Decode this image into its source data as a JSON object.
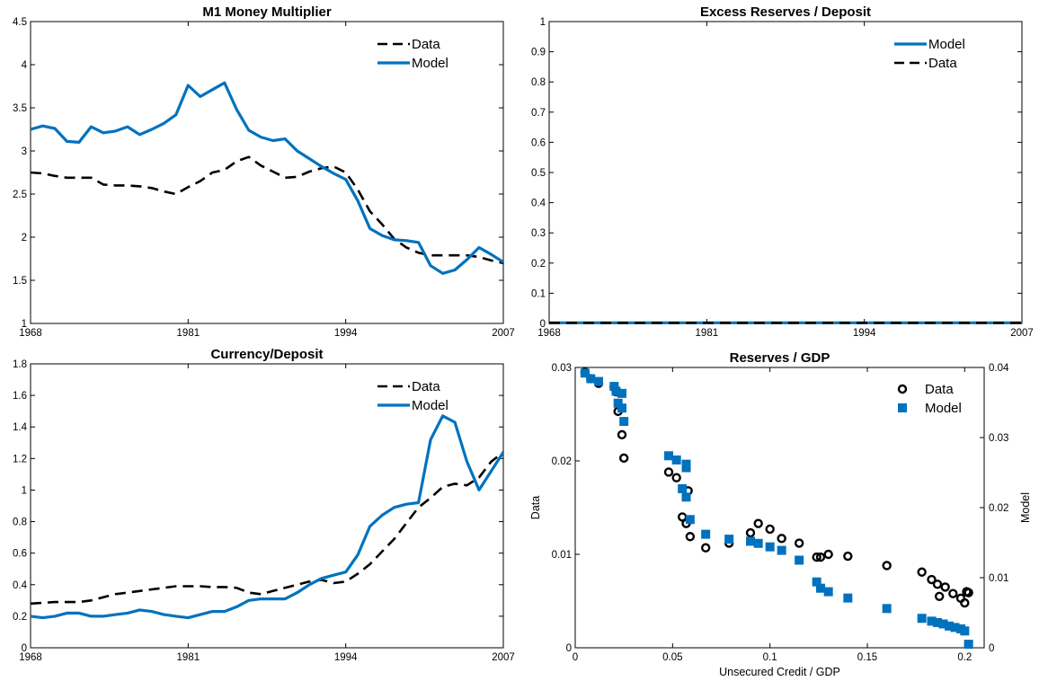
{
  "colors": {
    "data": "#000000",
    "model": "#0072BD",
    "axis": "#000000",
    "background": "#ffffff"
  },
  "chart_data": [
    {
      "id": "m1",
      "type": "line",
      "title": "M1 Money Multiplier",
      "xlabel": "",
      "ylabel": "",
      "xlim": [
        1968,
        2007
      ],
      "ylim": [
        1,
        4.5
      ],
      "xticks": [
        1968,
        1981,
        1994,
        2007
      ],
      "yticks": [
        1,
        1.5,
        2,
        2.5,
        3,
        3.5,
        4,
        4.5
      ],
      "ytick_labels": [
        "1",
        "1.5",
        "2",
        "2.5",
        "3",
        "3.5",
        "4",
        "4.5"
      ],
      "legend": {
        "placement": "top-right",
        "order": [
          "Data",
          "Model"
        ]
      },
      "x": [
        1968,
        1969,
        1970,
        1971,
        1972,
        1973,
        1974,
        1975,
        1976,
        1977,
        1978,
        1979,
        1980,
        1981,
        1982,
        1983,
        1984,
        1985,
        1986,
        1987,
        1988,
        1989,
        1990,
        1991,
        1992,
        1993,
        1994,
        1995,
        1996,
        1997,
        1998,
        1999,
        2000,
        2001,
        2002,
        2003,
        2004,
        2005,
        2006,
        2007
      ],
      "series": [
        {
          "name": "Data",
          "style": "dashed",
          "values": [
            2.75,
            2.74,
            2.71,
            2.69,
            2.69,
            2.69,
            2.61,
            2.6,
            2.6,
            2.59,
            2.57,
            2.53,
            2.5,
            2.58,
            2.65,
            2.75,
            2.78,
            2.88,
            2.93,
            2.83,
            2.76,
            2.69,
            2.7,
            2.76,
            2.8,
            2.82,
            2.75,
            2.55,
            2.3,
            2.15,
            1.98,
            1.88,
            1.82,
            1.79,
            1.79,
            1.79,
            1.79,
            1.77,
            1.73,
            1.7
          ]
        },
        {
          "name": "Model",
          "style": "solid",
          "values": [
            3.25,
            3.29,
            3.26,
            3.11,
            3.1,
            3.28,
            3.21,
            3.23,
            3.28,
            3.19,
            3.25,
            3.32,
            3.42,
            3.76,
            3.63,
            3.71,
            3.79,
            3.48,
            3.24,
            3.16,
            3.12,
            3.14,
            3.0,
            2.91,
            2.82,
            2.74,
            2.67,
            2.42,
            2.1,
            2.02,
            1.97,
            1.96,
            1.94,
            1.67,
            1.58,
            1.62,
            1.74,
            1.88,
            1.8,
            1.71
          ]
        }
      ]
    },
    {
      "id": "excess",
      "type": "line",
      "title": "Excess Reserves / Deposit",
      "xlabel": "",
      "ylabel": "",
      "xlim": [
        1968,
        2007
      ],
      "ylim": [
        0,
        1
      ],
      "xticks": [
        1968,
        1981,
        1994,
        2007
      ],
      "yticks": [
        0,
        0.1,
        0.2,
        0.3,
        0.4,
        0.5,
        0.6,
        0.7,
        0.8,
        0.9,
        1
      ],
      "ytick_labels": [
        "0",
        "0.1",
        "0.2",
        "0.3",
        "0.4",
        "0.5",
        "0.6",
        "0.7",
        "0.8",
        "0.9",
        "1"
      ],
      "legend": {
        "placement": "top-right",
        "order": [
          "Model",
          "Data"
        ]
      },
      "x": [
        1968,
        2007
      ],
      "series": [
        {
          "name": "Model",
          "style": "solid",
          "values": [
            0.002,
            0.002
          ]
        },
        {
          "name": "Data",
          "style": "dashed",
          "values": [
            0.002,
            0.002
          ]
        }
      ]
    },
    {
      "id": "currency",
      "type": "line",
      "title": "Currency/Deposit",
      "xlabel": "",
      "ylabel": "",
      "xlim": [
        1968,
        2007
      ],
      "ylim": [
        0,
        1.8
      ],
      "xticks": [
        1968,
        1981,
        1994,
        2007
      ],
      "yticks": [
        0,
        0.2,
        0.4,
        0.6,
        0.8,
        1,
        1.2,
        1.4,
        1.6,
        1.8
      ],
      "ytick_labels": [
        "0",
        "0.2",
        "0.4",
        "0.6",
        "0.8",
        "1",
        "1.2",
        "1.4",
        "1.6",
        "1.8"
      ],
      "legend": {
        "placement": "top-right",
        "order": [
          "Data",
          "Model"
        ]
      },
      "x": [
        1968,
        1969,
        1970,
        1971,
        1972,
        1973,
        1974,
        1975,
        1976,
        1977,
        1978,
        1979,
        1980,
        1981,
        1982,
        1983,
        1984,
        1985,
        1986,
        1987,
        1988,
        1989,
        1990,
        1991,
        1992,
        1993,
        1994,
        1995,
        1996,
        1997,
        1998,
        1999,
        2000,
        2001,
        2002,
        2003,
        2004,
        2005,
        2006,
        2007
      ],
      "series": [
        {
          "name": "Data",
          "style": "dashed",
          "values": [
            0.28,
            0.285,
            0.29,
            0.29,
            0.29,
            0.3,
            0.32,
            0.34,
            0.35,
            0.36,
            0.37,
            0.38,
            0.39,
            0.39,
            0.39,
            0.385,
            0.385,
            0.38,
            0.35,
            0.34,
            0.36,
            0.38,
            0.4,
            0.42,
            0.43,
            0.41,
            0.42,
            0.47,
            0.53,
            0.61,
            0.69,
            0.79,
            0.89,
            0.95,
            1.02,
            1.04,
            1.03,
            1.08,
            1.18,
            1.24
          ]
        },
        {
          "name": "Model",
          "style": "solid",
          "values": [
            0.2,
            0.19,
            0.2,
            0.22,
            0.22,
            0.2,
            0.2,
            0.21,
            0.22,
            0.24,
            0.23,
            0.21,
            0.2,
            0.19,
            0.21,
            0.23,
            0.23,
            0.26,
            0.3,
            0.31,
            0.31,
            0.31,
            0.35,
            0.4,
            0.44,
            0.46,
            0.48,
            0.59,
            0.77,
            0.84,
            0.89,
            0.91,
            0.92,
            1.32,
            1.47,
            1.43,
            1.18,
            1.0,
            1.12,
            1.24
          ]
        }
      ]
    },
    {
      "id": "reserves",
      "type": "scatter",
      "title": "Reserves / GDP",
      "xlabel": "Unsecured Credit / GDP",
      "ylabel": "Data",
      "ylabel_right": "Model",
      "xlim": [
        0,
        0.21
      ],
      "ylim": [
        0,
        0.03
      ],
      "ylim_right": [
        0,
        0.04
      ],
      "xticks": [
        0,
        0.05,
        0.1,
        0.15,
        0.2
      ],
      "xtick_labels": [
        "0",
        "0.05",
        "0.1",
        "0.15",
        "0.2"
      ],
      "yticks": [
        0,
        0.01,
        0.02,
        0.03
      ],
      "ytick_labels": [
        "0",
        "0.01",
        "0.02",
        "0.03"
      ],
      "yticks_right": [
        0,
        0.01,
        0.02,
        0.03,
        0.04
      ],
      "ytick_labels_right": [
        "0",
        "0.01",
        "0.02",
        "0.03",
        "0.04"
      ],
      "legend": {
        "placement": "top-right",
        "order": [
          "Data",
          "Model"
        ]
      },
      "series": [
        {
          "name": "Data",
          "marker": "circle",
          "axis": "left",
          "x": [
            0.005,
            0.008,
            0.012,
            0.02,
            0.021,
            0.022,
            0.024,
            0.025,
            0.048,
            0.052,
            0.055,
            0.057,
            0.058,
            0.059,
            0.067,
            0.079,
            0.09,
            0.094,
            0.1,
            0.106,
            0.115,
            0.124,
            0.126,
            0.13,
            0.14,
            0.16,
            0.178,
            0.183,
            0.186,
            0.187,
            0.19,
            0.194,
            0.198,
            0.2,
            0.201,
            0.202
          ],
          "values": [
            0.0295,
            0.0288,
            0.0283,
            0.0279,
            0.0274,
            0.0253,
            0.0228,
            0.0203,
            0.0188,
            0.0182,
            0.014,
            0.0133,
            0.0168,
            0.0119,
            0.0107,
            0.0112,
            0.0123,
            0.0133,
            0.0127,
            0.0117,
            0.0112,
            0.0097,
            0.0097,
            0.01,
            0.0098,
            0.0088,
            0.0081,
            0.0073,
            0.0068,
            0.0055,
            0.0065,
            0.0058,
            0.0053,
            0.0048,
            0.006,
            0.0059
          ]
        },
        {
          "name": "Model",
          "marker": "square",
          "axis": "right",
          "x": [
            0.005,
            0.008,
            0.012,
            0.02,
            0.021,
            0.022,
            0.024,
            0.024,
            0.025,
            0.048,
            0.052,
            0.055,
            0.057,
            0.057,
            0.057,
            0.059,
            0.067,
            0.079,
            0.09,
            0.094,
            0.1,
            0.106,
            0.115,
            0.124,
            0.126,
            0.13,
            0.14,
            0.16,
            0.178,
            0.183,
            0.186,
            0.189,
            0.192,
            0.195,
            0.198,
            0.2,
            0.202
          ],
          "values": [
            0.0392,
            0.0384,
            0.038,
            0.0373,
            0.0366,
            0.0349,
            0.0363,
            0.0342,
            0.0323,
            0.0274,
            0.0268,
            0.0227,
            0.0262,
            0.0257,
            0.0215,
            0.0183,
            0.0162,
            0.0155,
            0.0152,
            0.0149,
            0.0144,
            0.0139,
            0.0125,
            0.0094,
            0.0085,
            0.008,
            0.0071,
            0.0056,
            0.0042,
            0.0038,
            0.0036,
            0.0034,
            0.0031,
            0.0029,
            0.0027,
            0.0024,
            0.0005
          ]
        }
      ]
    }
  ]
}
